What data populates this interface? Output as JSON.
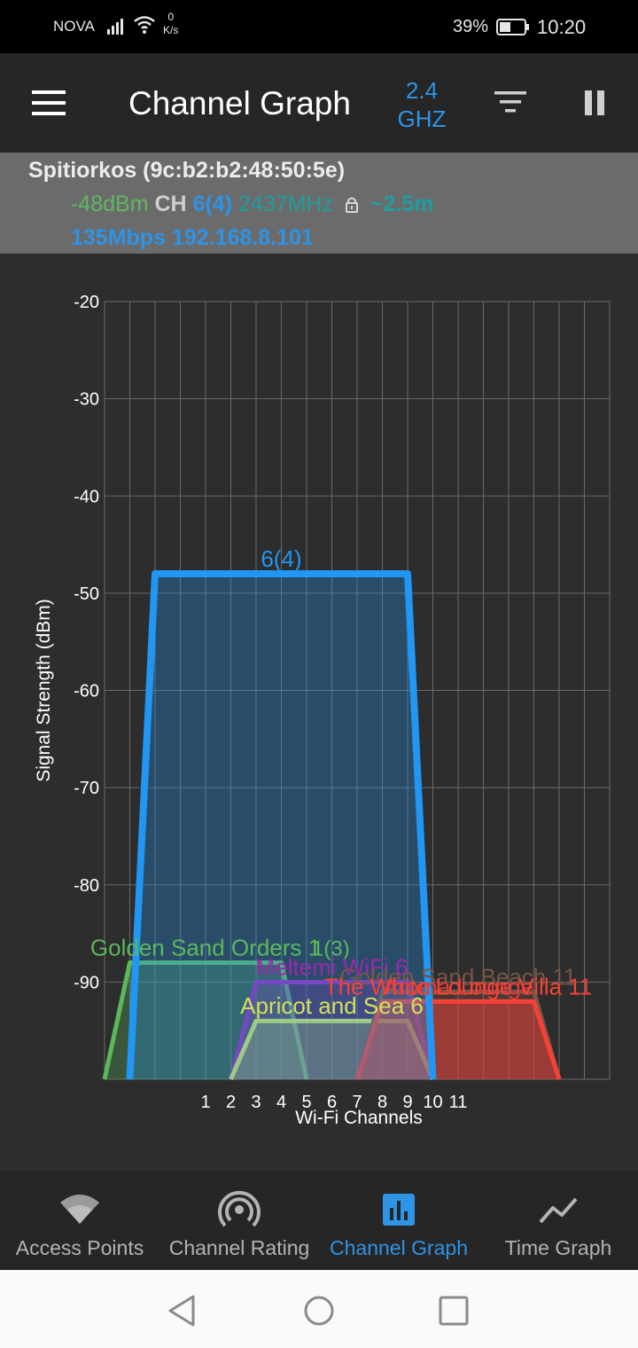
{
  "status_bar": {
    "carrier": "NOVA",
    "speed_value": "0",
    "speed_unit": "K/s",
    "battery": "39%",
    "time": "10:20"
  },
  "app_bar": {
    "title": "Channel Graph",
    "band_line1": "2.4",
    "band_line2": "GHZ",
    "icons": [
      "menu-icon",
      "filter-icon",
      "pause-icon"
    ]
  },
  "connected_ap": {
    "name": "Spitiorkos (9c:b2:b2:48:50:5e)",
    "signal": "-48dBm",
    "ch_label": "CH",
    "channel": "6(4)",
    "frequency": "2437MHz",
    "distance": "~2.5m",
    "speed_ip": "135Mbps 192.168.8.101"
  },
  "chart_data": {
    "type": "area",
    "ylabel": "Signal Strength (dBm)",
    "xlabel": "Wi-Fi Channels",
    "ylim": [
      -100,
      -20
    ],
    "y_ticks": [
      -20,
      -30,
      -40,
      -50,
      -60,
      -70,
      -80,
      -90
    ],
    "x_ticks": [
      1,
      2,
      3,
      4,
      5,
      6,
      7,
      8,
      9,
      10,
      11
    ],
    "grid": true,
    "series": [
      {
        "name": "Golden Sand Orders 1",
        "label": "Golden Sand Orders 1",
        "label2": "1(3)",
        "channel_range": [
          -3,
          5
        ],
        "signal": -88,
        "color": "#5cb85c"
      },
      {
        "name": "Meltemi WiFi 6",
        "label": "Meltemi WiFi 6",
        "channel_range": [
          2,
          10
        ],
        "signal": -90,
        "color": "#9c27b0"
      },
      {
        "name": "Apricot and Sea 6",
        "label": "Apricot and Sea 6",
        "channel_range": [
          2,
          10
        ],
        "signal": -94,
        "color": "#d4e157"
      },
      {
        "name": "Golden Sand Beach 11",
        "label": "Golden Sand Beach 11",
        "channel_range": [
          7,
          15
        ],
        "signal": -91,
        "color": "#795548"
      },
      {
        "name": "Aroma Lounge",
        "label": "Aroma Lounge",
        "channel_range": [
          7,
          15
        ],
        "signal": -92,
        "color": "#e53935"
      },
      {
        "name": "The White Lounge Villa 11",
        "label": "The White Lounge Villa 11",
        "channel_range": [
          7,
          15
        ],
        "signal": -92,
        "color": "#f44336"
      },
      {
        "name": "Spitiorkos",
        "label": "6(4)",
        "channel_range": [
          -2,
          10
        ],
        "signal": -48,
        "color": "#2196f3"
      }
    ]
  },
  "bottom_nav": {
    "items": [
      {
        "label": "Access Points",
        "icon": "wifi-icon"
      },
      {
        "label": "Channel Rating",
        "icon": "signal-rating-icon"
      },
      {
        "label": "Channel Graph",
        "icon": "bar-chart-icon",
        "active": true
      },
      {
        "label": "Time Graph",
        "icon": "line-chart-icon"
      }
    ]
  },
  "system_nav": [
    "back-icon",
    "home-icon",
    "recents-icon"
  ]
}
